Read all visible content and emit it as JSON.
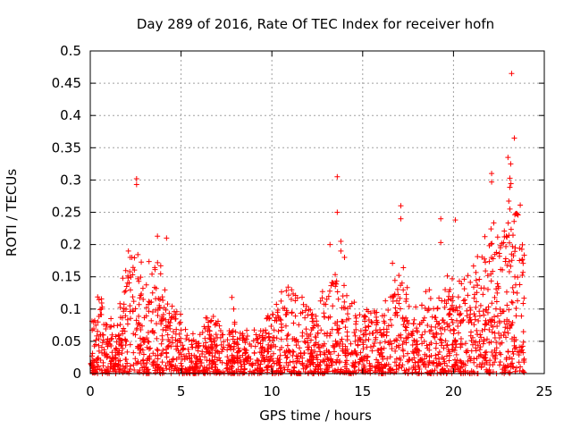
{
  "chart_data": {
    "type": "scatter",
    "title": "Day 289 of 2016, Rate Of TEC Index for receiver hofn",
    "xlabel": "GPS time / hours",
    "ylabel": "ROTI / TECUs",
    "xlim": [
      0,
      25
    ],
    "ylim": [
      0,
      0.5
    ],
    "x_ticks": [
      0,
      5,
      10,
      15,
      20,
      25
    ],
    "x_tick_labels": [
      "0",
      "5",
      "10",
      "15",
      "20",
      "25"
    ],
    "y_ticks": [
      0,
      0.05,
      0.1,
      0.15,
      0.2,
      0.25,
      0.3,
      0.35,
      0.4,
      0.45,
      0.5
    ],
    "y_tick_labels": [
      "0",
      "0.05",
      "0.1",
      "0.15",
      "0.2",
      "0.25",
      "0.3",
      "0.35",
      "0.4",
      "0.45",
      "0.5"
    ],
    "grid": true,
    "marker": "plus",
    "series": [
      {
        "name": "ROTI",
        "color": "#ff0000",
        "outliers": [
          [
            23.2,
            0.465
          ],
          [
            23.35,
            0.365
          ],
          [
            13.6,
            0.305
          ],
          [
            2.55,
            0.302
          ],
          [
            2.55,
            0.293
          ],
          [
            13.6,
            0.25
          ],
          [
            17.1,
            0.26
          ],
          [
            17.1,
            0.24
          ],
          [
            19.3,
            0.24
          ],
          [
            19.3,
            0.203
          ],
          [
            20.1,
            0.238
          ],
          [
            22.1,
            0.31
          ],
          [
            22.1,
            0.297
          ],
          [
            23.0,
            0.335
          ],
          [
            3.7,
            0.213
          ],
          [
            4.2,
            0.21
          ],
          [
            7.8,
            0.118
          ],
          [
            7.9,
            0.1
          ],
          [
            13.2,
            0.2
          ],
          [
            13.8,
            0.205
          ],
          [
            13.8,
            0.19
          ],
          [
            14.0,
            0.18
          ],
          [
            2.1,
            0.19
          ],
          [
            2.2,
            0.18
          ],
          [
            23.15,
            0.325
          ]
        ],
        "envelope": [
          [
            0.0,
            0.06
          ],
          [
            0.5,
            0.13
          ],
          [
            1.0,
            0.08
          ],
          [
            1.5,
            0.07
          ],
          [
            2.0,
            0.17
          ],
          [
            2.5,
            0.2
          ],
          [
            3.0,
            0.15
          ],
          [
            3.5,
            0.16
          ],
          [
            4.0,
            0.15
          ],
          [
            4.5,
            0.12
          ],
          [
            5.0,
            0.09
          ],
          [
            5.5,
            0.06
          ],
          [
            6.0,
            0.05
          ],
          [
            6.5,
            0.09
          ],
          [
            7.0,
            0.08
          ],
          [
            7.5,
            0.07
          ],
          [
            8.0,
            0.08
          ],
          [
            8.5,
            0.06
          ],
          [
            9.0,
            0.07
          ],
          [
            9.5,
            0.09
          ],
          [
            10.0,
            0.1
          ],
          [
            10.5,
            0.12
          ],
          [
            11.0,
            0.13
          ],
          [
            11.5,
            0.12
          ],
          [
            12.0,
            0.1
          ],
          [
            12.5,
            0.1
          ],
          [
            13.0,
            0.14
          ],
          [
            13.5,
            0.17
          ],
          [
            14.0,
            0.12
          ],
          [
            14.5,
            0.1
          ],
          [
            15.0,
            0.09
          ],
          [
            15.5,
            0.1
          ],
          [
            16.0,
            0.08
          ],
          [
            16.5,
            0.15
          ],
          [
            17.0,
            0.18
          ],
          [
            17.5,
            0.13
          ],
          [
            18.0,
            0.09
          ],
          [
            18.5,
            0.12
          ],
          [
            19.0,
            0.11
          ],
          [
            19.5,
            0.15
          ],
          [
            20.0,
            0.13
          ],
          [
            20.5,
            0.14
          ],
          [
            21.0,
            0.15
          ],
          [
            21.5,
            0.17
          ],
          [
            22.0,
            0.2
          ],
          [
            22.5,
            0.22
          ],
          [
            23.0,
            0.3
          ],
          [
            23.5,
            0.29
          ],
          [
            23.9,
            0.27
          ]
        ]
      }
    ]
  }
}
